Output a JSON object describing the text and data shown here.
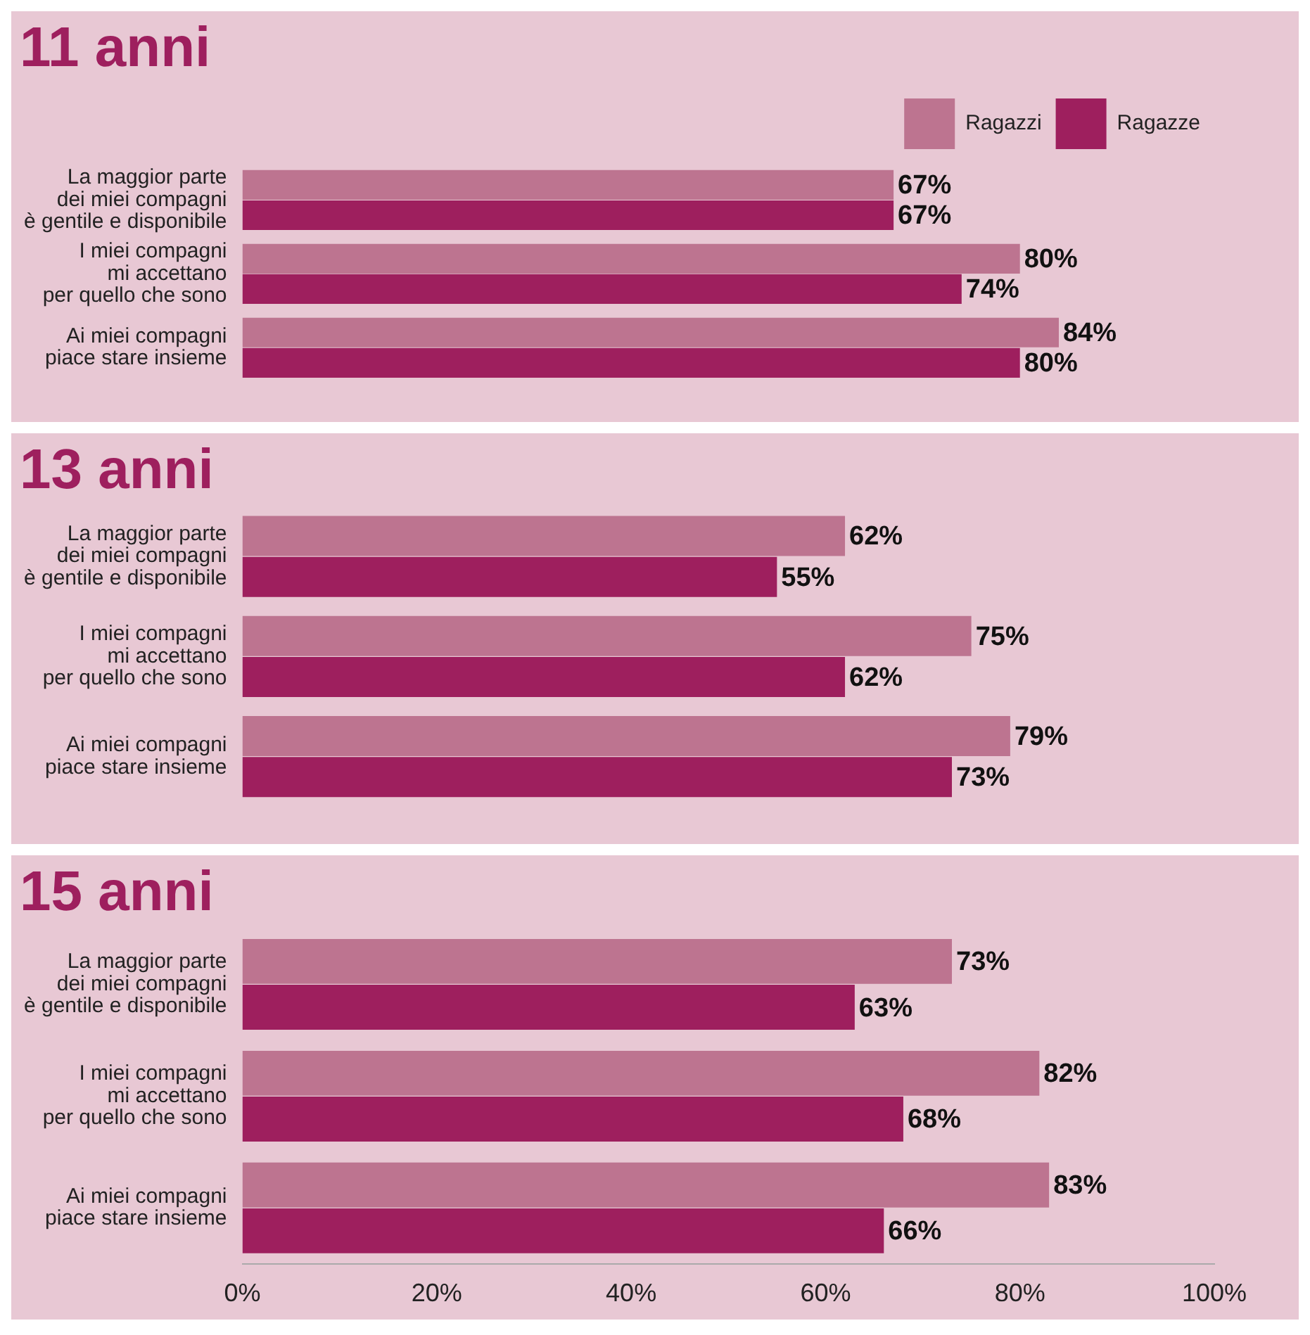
{
  "chart_data": [
    {
      "type": "bar",
      "orientation": "horizontal",
      "title": "11 anni",
      "categories": [
        "La maggior parte\ndei miei compagni\nè gentile e disponibile",
        "I miei compagni\nmi accettano\nper quello che sono",
        "Ai miei compagni\npiace stare insieme"
      ],
      "series": [
        {
          "name": "Ragazzi",
          "color": "#bd7490",
          "values": [
            67,
            80,
            84
          ],
          "value_labels": [
            "67%",
            "80%",
            "84%"
          ]
        },
        {
          "name": "Ragazze",
          "color": "#9e1f5e",
          "values": [
            67,
            74,
            80
          ],
          "value_labels": [
            "67%",
            "74%",
            "80%"
          ]
        }
      ],
      "xlim": [
        0,
        100
      ],
      "tick_labels": "y",
      "grid": false,
      "legend": "top right"
    },
    {
      "type": "bar",
      "orientation": "horizontal",
      "title": "13 anni",
      "categories": [
        "La maggior parte\ndei miei compagni\nè gentile e disponibile",
        "I miei compagni\nmi accettano\nper quello che sono",
        "Ai miei compagni\npiace stare insieme"
      ],
      "series": [
        {
          "color": "#bd7490",
          "values": [
            62,
            75,
            79
          ],
          "value_labels": [
            "62%",
            "75%",
            "79%"
          ]
        },
        {
          "color": "#9e1f5e",
          "values": [
            55,
            62,
            73
          ],
          "value_labels": [
            "55%",
            "62%",
            "73%"
          ]
        }
      ],
      "xlim": [
        0,
        100
      ],
      "tick_labels": "y",
      "grid": false,
      "legend": false
    },
    {
      "type": "bar",
      "orientation": "horizontal",
      "title": "15 anni",
      "categories": [
        "La maggior parte\ndei miei compagni\nè gentile e disponibile",
        "I miei compagni\nmi accettano\nper quello che sono",
        "Ai miei compagni\npiace stare insieme"
      ],
      "series": [
        {
          "color": "#bd7490",
          "values": [
            73,
            82,
            83
          ],
          "value_labels": [
            "73%",
            "82%",
            "83%"
          ]
        },
        {
          "color": "#9e1f5e",
          "values": [
            63,
            68,
            66
          ],
          "value_labels": [
            "63%",
            "68%",
            "66%"
          ]
        }
      ],
      "xlim": [
        0,
        100
      ],
      "xticks": [
        {
          "value": 0,
          "label": "0%"
        },
        {
          "value": 20,
          "label": "20%"
        },
        {
          "value": 40,
          "label": "40%"
        },
        {
          "value": 60,
          "label": "60%"
        },
        {
          "value": 80,
          "label": "80%"
        },
        {
          "value": 100,
          "label": "100%"
        }
      ],
      "grid": false,
      "legend": false
    }
  ]
}
